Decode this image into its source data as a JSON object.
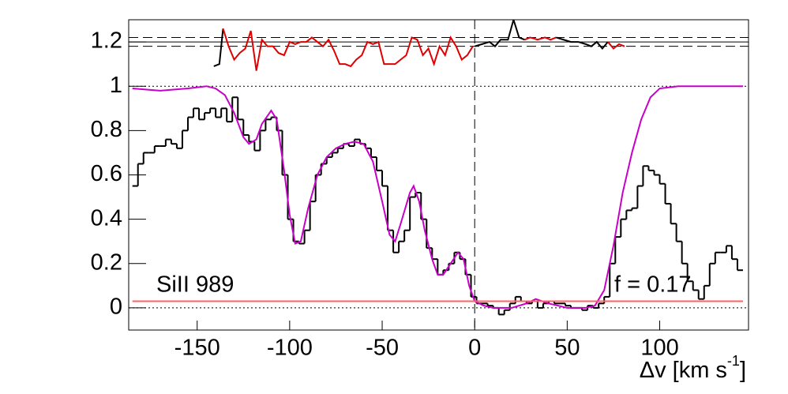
{
  "chart_data": {
    "type": "spectrum",
    "xlabel": [
      "Δv [km s",
      "-1",
      "]"
    ],
    "annotations": [
      "SiII 989",
      "f = 0.17"
    ],
    "xlim": [
      -187,
      148
    ],
    "ylim": [
      -0.1,
      1.3
    ],
    "xticks": [
      -150,
      -100,
      -50,
      0,
      50,
      100
    ],
    "yticks": [
      0,
      0.2,
      0.4,
      0.6,
      0.8,
      1,
      1.2
    ],
    "hlines": [
      {
        "value": 0,
        "style": "dotted"
      },
      {
        "value": 1,
        "style": "dotted"
      },
      {
        "value": 1.2,
        "style": "solid"
      },
      {
        "value": 1.18,
        "style": "dashed"
      },
      {
        "value": 1.22,
        "style": "dashed"
      }
    ],
    "vlines": [
      {
        "value": 0,
        "style": "dashed"
      }
    ],
    "series": [
      {
        "name": "flux",
        "kind": "step",
        "color": "#000000",
        "x": [
          -185,
          -182,
          -179,
          -176,
          -173,
          -170,
          -167,
          -164,
          -161,
          -158,
          -155,
          -152,
          -149,
          -146,
          -143,
          -140,
          -137,
          -134,
          -131,
          -128,
          -125,
          -122,
          -119,
          -116,
          -113,
          -110,
          -107,
          -104,
          -101,
          -98,
          -95,
          -92,
          -89,
          -86,
          -83,
          -80,
          -77,
          -74,
          -71,
          -68,
          -65,
          -62,
          -59,
          -56,
          -53,
          -50,
          -47,
          -44,
          -41,
          -38,
          -35,
          -32,
          -29,
          -26,
          -23,
          -20,
          -17,
          -14,
          -11,
          -8,
          -5,
          -2,
          1,
          4,
          7,
          10,
          13,
          16,
          19,
          22,
          25,
          28,
          31,
          34,
          37,
          40,
          43,
          46,
          49,
          52,
          55,
          58,
          61,
          64,
          67,
          70,
          73,
          76,
          79,
          82,
          85,
          88,
          91,
          94,
          97,
          100,
          103,
          106,
          109,
          112,
          115,
          118,
          121,
          124,
          127,
          130,
          133,
          136,
          139,
          142
        ],
        "values": [
          0.55,
          0.65,
          0.7,
          0.7,
          0.73,
          0.73,
          0.76,
          0.74,
          0.72,
          0.8,
          0.86,
          0.9,
          0.85,
          0.88,
          0.9,
          0.86,
          0.9,
          0.84,
          0.95,
          0.85,
          0.78,
          0.75,
          0.71,
          0.8,
          0.85,
          0.86,
          0.8,
          0.6,
          0.4,
          0.3,
          0.29,
          0.35,
          0.48,
          0.6,
          0.65,
          0.68,
          0.7,
          0.72,
          0.74,
          0.73,
          0.76,
          0.74,
          0.72,
          0.68,
          0.62,
          0.55,
          0.35,
          0.25,
          0.3,
          0.35,
          0.5,
          0.52,
          0.4,
          0.27,
          0.22,
          0.15,
          0.17,
          0.2,
          0.25,
          0.22,
          0.15,
          0.05,
          0.02,
          0.02,
          0.01,
          0,
          -0.03,
          -0.01,
          0.02,
          0.05,
          0.03,
          0.02,
          0.03,
          0,
          0.02,
          0.03,
          0.02,
          0.02,
          0.01,
          0,
          0,
          -0.01,
          0.01,
          0,
          0.02,
          0.05,
          0.2,
          0.32,
          0.4,
          0.44,
          0.45,
          0.55,
          0.64,
          0.62,
          0.6,
          0.56,
          0.47,
          0.38,
          0.3,
          0.2,
          0.12,
          0.08,
          0.04,
          0.1,
          0.2,
          0.25,
          0.25,
          0.28,
          0.22,
          0.17
        ]
      },
      {
        "name": "model",
        "kind": "line",
        "color": "#c800c8",
        "x": [
          -185,
          -170,
          -155,
          -145,
          -140,
          -135,
          -130,
          -125,
          -122,
          -118,
          -115,
          -110,
          -107,
          -103,
          -100,
          -97,
          -94,
          -90,
          -85,
          -80,
          -75,
          -70,
          -65,
          -60,
          -55,
          -50,
          -46,
          -43,
          -40,
          -35,
          -33,
          -30,
          -27,
          -23,
          -20,
          -17,
          -13,
          -9,
          -6,
          -3,
          0,
          5,
          10,
          20,
          28,
          33,
          40,
          50,
          60,
          65,
          70,
          75,
          80,
          85,
          90,
          95,
          100,
          110,
          145
        ],
        "values": [
          0.99,
          0.98,
          0.99,
          1,
          0.99,
          0.96,
          0.88,
          0.77,
          0.74,
          0.76,
          0.83,
          0.89,
          0.85,
          0.62,
          0.42,
          0.29,
          0.3,
          0.45,
          0.6,
          0.68,
          0.72,
          0.74,
          0.75,
          0.74,
          0.66,
          0.48,
          0.33,
          0.3,
          0.38,
          0.52,
          0.55,
          0.48,
          0.35,
          0.22,
          0.15,
          0.15,
          0.2,
          0.25,
          0.22,
          0.1,
          0.03,
          0.01,
          0,
          0,
          0.02,
          0.04,
          0.02,
          0,
          0,
          0.01,
          0.08,
          0.28,
          0.52,
          0.7,
          0.85,
          0.95,
          0.99,
          1,
          1
        ]
      },
      {
        "name": "error",
        "kind": "line",
        "color": "#ff6060",
        "x": [
          -185,
          -150,
          -100,
          -50,
          0,
          50,
          100,
          145
        ],
        "values": [
          0.03,
          0.03,
          0.03,
          0.03,
          0.03,
          0.03,
          0.03,
          0.03
        ]
      },
      {
        "name": "residual-black",
        "kind": "line",
        "color": "#000000",
        "x": [
          -141,
          -138,
          -136,
          -1,
          0,
          4,
          8,
          11,
          14,
          18,
          21,
          24,
          27,
          28,
          44,
          48,
          52,
          56,
          60,
          63,
          66,
          69,
          72
        ],
        "values": [
          1.09,
          1.1,
          1.26,
          null,
          1.18,
          1.19,
          1.2,
          1.18,
          1.21,
          1.21,
          1.3,
          1.22,
          1.21,
          null,
          1.22,
          1.21,
          1.2,
          1.2,
          1.19,
          1.18,
          1.2,
          1.17,
          1.2
        ]
      },
      {
        "name": "residual-red",
        "kind": "line",
        "color": "#e00000",
        "x": [
          -136,
          -133,
          -130,
          -127,
          -124,
          -121,
          -118,
          -115,
          -112,
          -109,
          -106,
          -103,
          -100,
          -97,
          -94,
          -91,
          -88,
          -85,
          -82,
          -79,
          -76,
          -73,
          -70,
          -67,
          -64,
          -61,
          -58,
          -55,
          -52,
          -49,
          -46,
          -43,
          -40,
          -37,
          -34,
          -31,
          -28,
          -25,
          -22,
          -19,
          -16,
          -13,
          -10,
          -7,
          -4,
          -1,
          0,
          26,
          27,
          30,
          34,
          38,
          41,
          44,
          45,
          71,
          72,
          75,
          78,
          81
        ],
        "values": [
          1.26,
          1.18,
          1.12,
          1.15,
          1.17,
          1.25,
          1.07,
          1.21,
          1.18,
          1.18,
          1.15,
          1.14,
          1.2,
          1.19,
          1.2,
          1.2,
          1.22,
          1.2,
          1.18,
          1.21,
          1.16,
          1.1,
          1.1,
          1.09,
          1.12,
          1.14,
          1.2,
          1.19,
          1.2,
          1.1,
          1.1,
          1.1,
          1.12,
          1.14,
          1.22,
          1.21,
          1.14,
          1.17,
          1.1,
          1.18,
          1.14,
          1.22,
          1.18,
          1.12,
          1.14,
          1.18,
          null,
          null,
          1.21,
          1.22,
          1.21,
          1.22,
          1.21,
          1.22,
          null,
          null,
          1.2,
          1.17,
          1.19,
          1.18
        ]
      }
    ]
  }
}
